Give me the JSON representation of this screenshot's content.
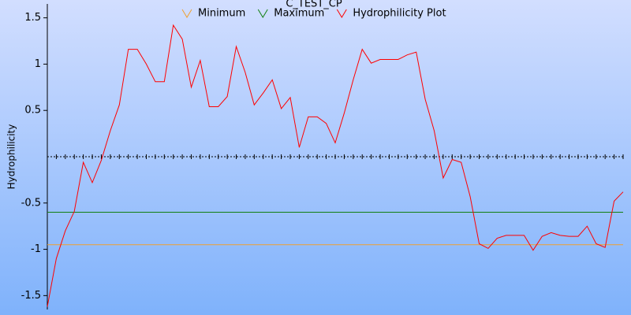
{
  "chart_data": {
    "type": "line",
    "title": "C_TEST_CP",
    "y_label": "Hydrophilicity",
    "ylim": [
      -1.65,
      1.65
    ],
    "yticks": [
      {
        "value": 1.5,
        "label": "1.5"
      },
      1,
      {
        "value": 0.5,
        "label": "0.5"
      },
      {
        "value": -0.5,
        "label": "-0.5"
      },
      -1,
      {
        "value": -1.5,
        "label": "-1.5"
      }
    ],
    "hlines": [
      {
        "name": "Minimum",
        "color": "#f0a030",
        "value": -0.95
      },
      {
        "name": "Maximum",
        "color": "#108010",
        "value": -0.6
      }
    ],
    "series": [
      {
        "name": "Hydrophilicity Plot",
        "color": "#ff0000",
        "values": [
          -1.62,
          -1.1,
          -0.8,
          -0.59,
          -0.06,
          -0.28,
          -0.04,
          0.28,
          0.56,
          1.16,
          1.16,
          1.0,
          0.81,
          0.81,
          1.42,
          1.27,
          0.75,
          1.04,
          0.54,
          0.54,
          0.65,
          1.19,
          0.91,
          0.56,
          0.69,
          0.83,
          0.52,
          0.64,
          0.1,
          0.43,
          0.43,
          0.36,
          0.15,
          0.47,
          0.83,
          1.16,
          1.01,
          1.05,
          1.05,
          1.05,
          1.1,
          1.13,
          0.62,
          0.28,
          -0.23,
          -0.03,
          -0.06,
          -0.43,
          -0.94,
          -0.99,
          -0.88,
          -0.85,
          -0.85,
          -0.85,
          -1.01,
          -0.86,
          -0.82,
          -0.85,
          -0.86,
          -0.86,
          -0.75,
          -0.94,
          -0.98,
          -0.48,
          -0.38
        ]
      }
    ]
  }
}
